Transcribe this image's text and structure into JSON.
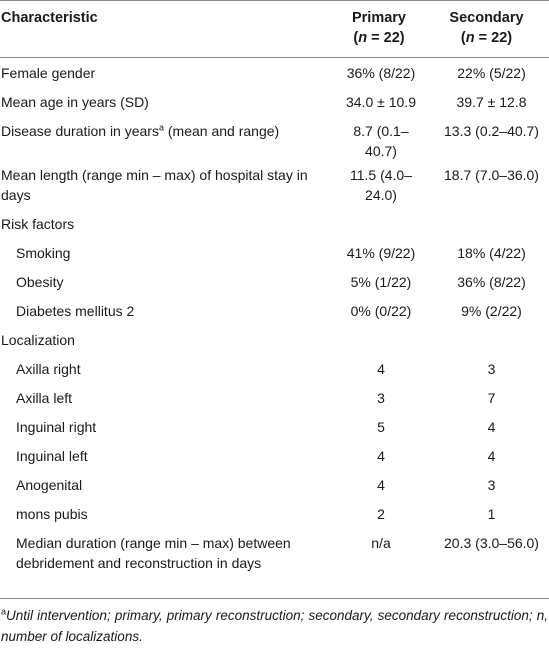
{
  "header": {
    "characteristic": "Characteristic",
    "primary": "Primary",
    "primary_n": "(n = 22)",
    "secondary": "Secondary",
    "secondary_n": "(n = 22)"
  },
  "rows": [
    {
      "label": "Female gender",
      "sup": "",
      "primary": "36% (8/22)",
      "secondary": "22% (5/22)"
    },
    {
      "label": "Mean age in years (SD)",
      "sup": "",
      "primary": "34.0 ± 10.9",
      "secondary": "39.7 ± 12.8"
    },
    {
      "label": "Disease duration in years",
      "sup": "a",
      "label_after": " (mean and range)",
      "primary": "8.7 (0.1–40.7)",
      "secondary": "13.3 (0.2–40.7)"
    },
    {
      "label": "Mean length (range min – max) of hospital stay in days",
      "sup": "",
      "primary": "11.5 (4.0–24.0)",
      "secondary": "18.7 (7.0–36.0)"
    },
    {
      "label": "Risk factors",
      "sup": "",
      "primary": "",
      "secondary": ""
    },
    {
      "label": "Smoking",
      "sup": "",
      "primary": "41% (9/22)",
      "secondary": "18% (4/22)"
    },
    {
      "label": "Obesity",
      "sup": "",
      "primary": "5% (1/22)",
      "secondary": "36% (8/22)"
    },
    {
      "label": "Diabetes mellitus 2",
      "sup": "",
      "primary": "0% (0/22)",
      "secondary": "9% (2/22)"
    },
    {
      "label": "Localization",
      "sup": "",
      "primary": "",
      "secondary": ""
    },
    {
      "label": "Axilla right",
      "sup": "",
      "primary": "4",
      "secondary": "3"
    },
    {
      "label": "Axilla left",
      "sup": "",
      "primary": "3",
      "secondary": "7"
    },
    {
      "label": "Inguinal right",
      "sup": "",
      "primary": "5",
      "secondary": "4"
    },
    {
      "label": "Inguinal left",
      "sup": "",
      "primary": "4",
      "secondary": "4"
    },
    {
      "label": "Anogenital",
      "sup": "",
      "primary": "4",
      "secondary": "3"
    },
    {
      "label": "mons pubis",
      "sup": "",
      "primary": "2",
      "secondary": "1"
    },
    {
      "label": "Median duration (range min – max) between debridement and reconstruction in days",
      "sup": "",
      "primary": "n/a",
      "secondary": "20.3 (3.0–56.0)"
    }
  ],
  "footnote": {
    "sup": "a",
    "text": "Until intervention; primary, primary reconstruction; secondary, secondary reconstruction; n, number of localizations."
  }
}
